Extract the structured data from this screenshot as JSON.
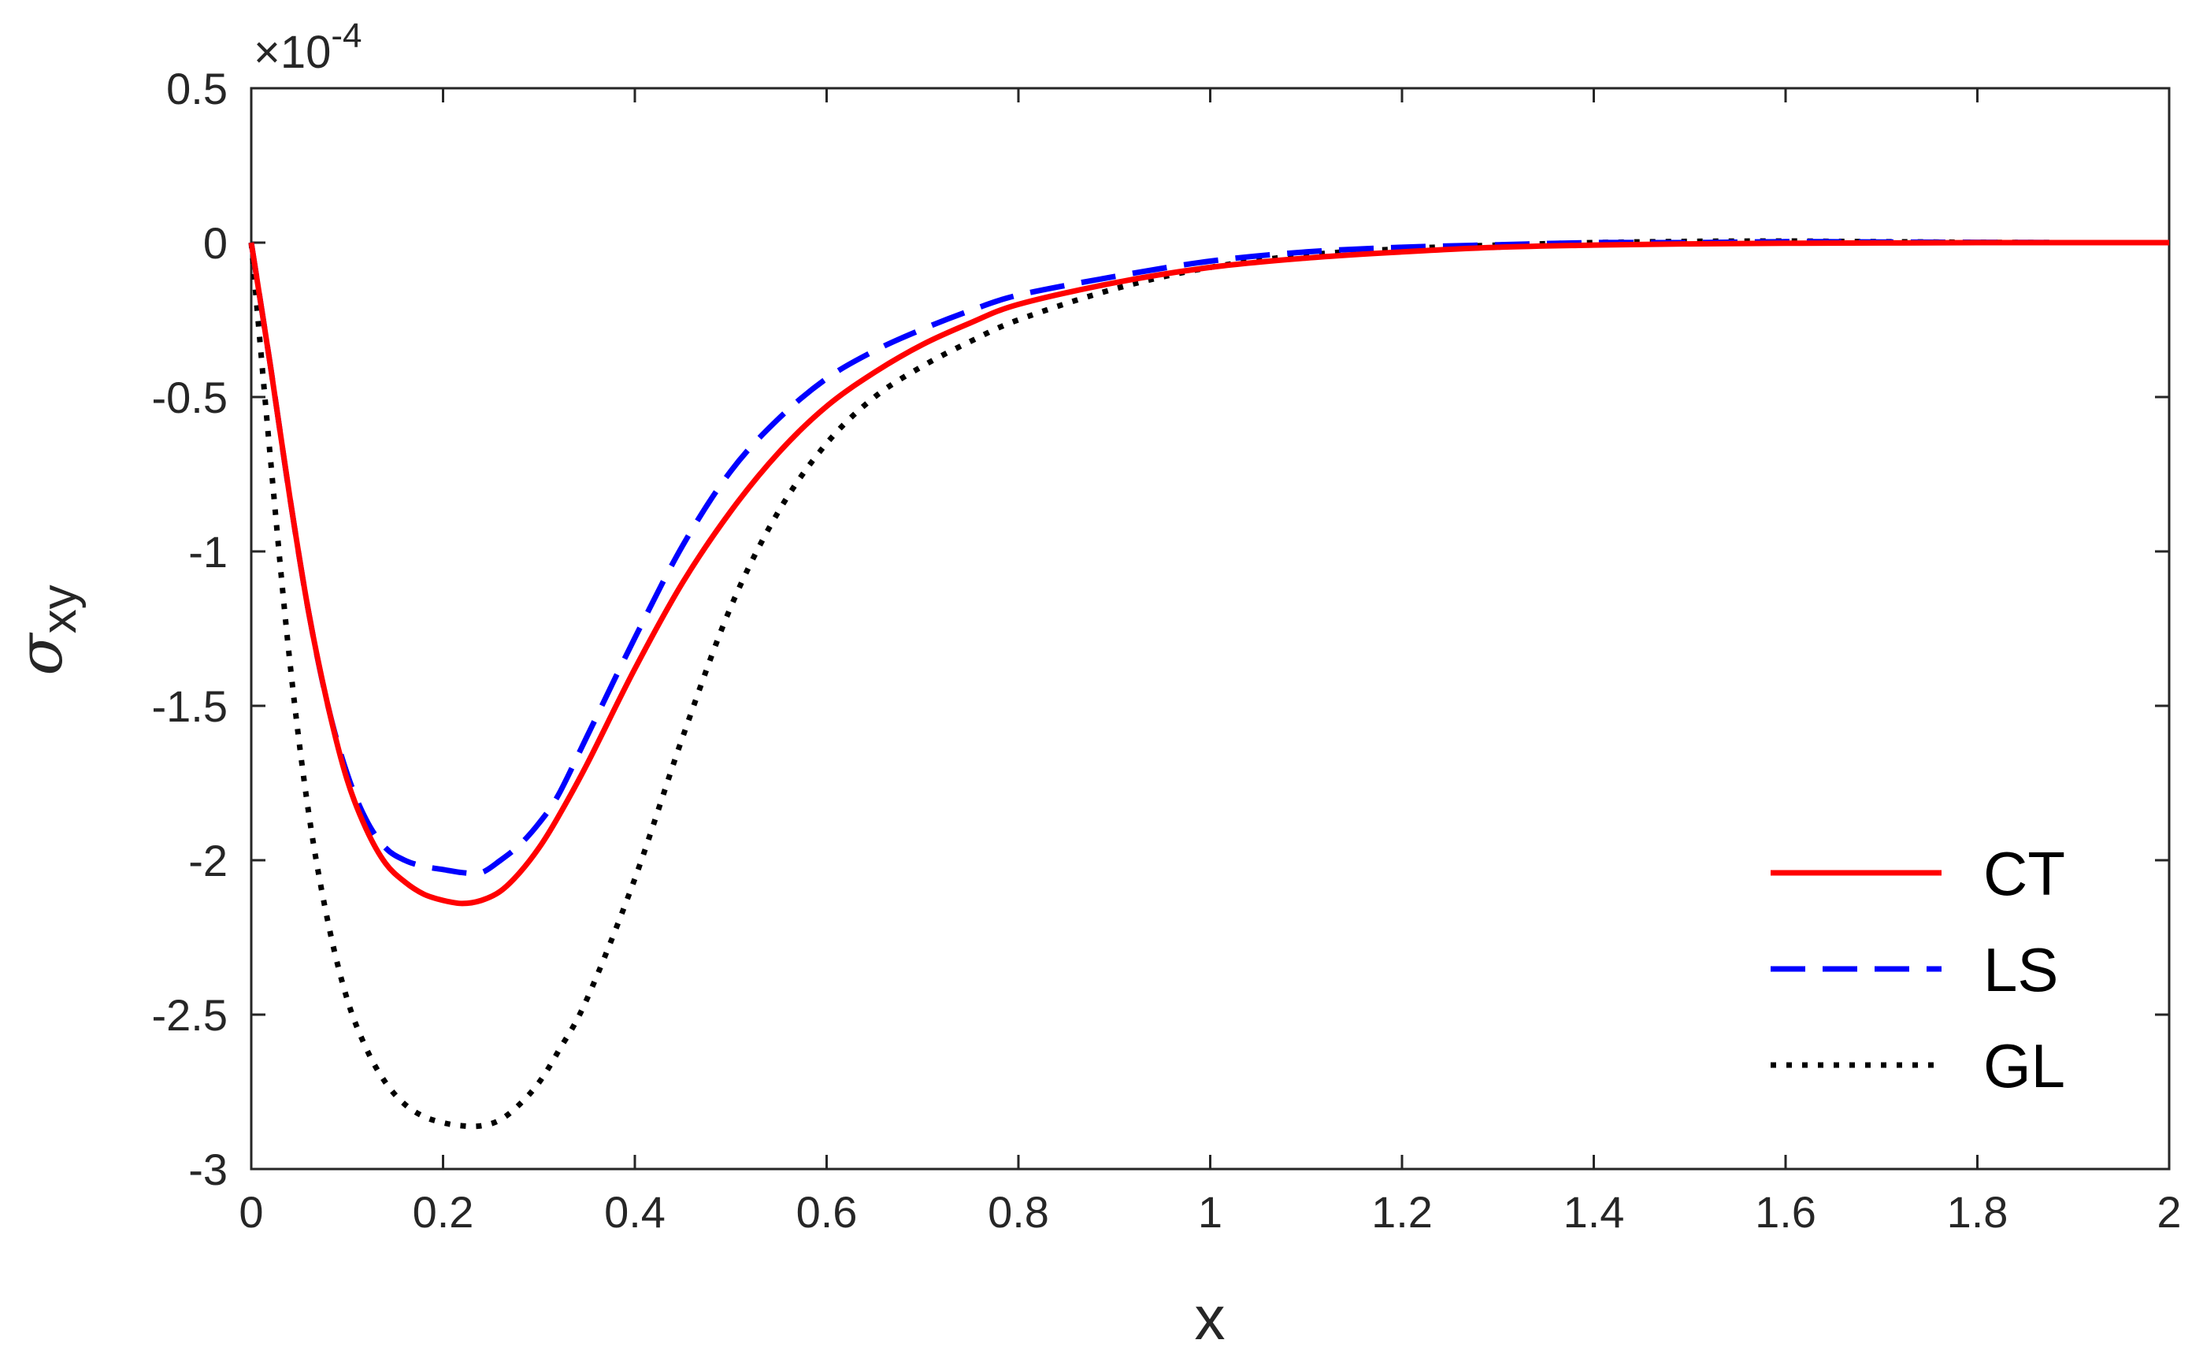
{
  "chart_data": {
    "type": "line",
    "xlabel": "x",
    "ylabel_main": "σ",
    "ylabel_sub": "xy",
    "y_exponent_times": "×10",
    "y_exponent_power": "-4",
    "xlim": [
      0,
      2
    ],
    "ylim": [
      -3,
      0.5
    ],
    "xticks": [
      0,
      0.2,
      0.4,
      0.6,
      0.8,
      1,
      1.2,
      1.4,
      1.6,
      1.8,
      2
    ],
    "xtick_labels": [
      "0",
      "0.2",
      "0.4",
      "0.6",
      "0.8",
      "1",
      "1.2",
      "1.4",
      "1.6",
      "1.8",
      "2"
    ],
    "yticks": [
      0.5,
      0,
      -0.5,
      -1,
      -1.5,
      -2,
      -2.5,
      -3
    ],
    "ytick_labels": [
      "0.5",
      "0",
      "-0.5",
      "-1",
      "-1.5",
      "-2",
      "-2.5",
      "-3"
    ],
    "grid": false,
    "legend_position": "bottom-right",
    "colors": {
      "CT": "#ff0000",
      "LS": "#0000ff",
      "GL": "#000000",
      "axis": "#262626"
    },
    "series": [
      {
        "name": "CT",
        "style": "solid",
        "x": [
          0,
          0.02,
          0.04,
          0.06,
          0.08,
          0.1,
          0.12,
          0.14,
          0.16,
          0.18,
          0.2,
          0.22,
          0.24,
          0.26,
          0.28,
          0.3,
          0.32,
          0.35,
          0.4,
          0.45,
          0.5,
          0.55,
          0.6,
          0.65,
          0.7,
          0.75,
          0.8,
          0.9,
          1.0,
          1.1,
          1.2,
          1.3,
          1.4,
          1.5,
          1.6,
          1.7,
          1.8,
          1.9,
          2.0
        ],
        "y": [
          0,
          -0.4,
          -0.82,
          -1.2,
          -1.5,
          -1.74,
          -1.9,
          -2.01,
          -2.07,
          -2.11,
          -2.13,
          -2.14,
          -2.13,
          -2.1,
          -2.04,
          -1.96,
          -1.86,
          -1.69,
          -1.38,
          -1.1,
          -0.87,
          -0.68,
          -0.53,
          -0.42,
          -0.33,
          -0.26,
          -0.2,
          -0.13,
          -0.08,
          -0.05,
          -0.03,
          -0.015,
          -0.008,
          -0.004,
          -0.002,
          -0.001,
          0,
          0,
          0
        ]
      },
      {
        "name": "LS",
        "style": "dashed",
        "x": [
          0,
          0.02,
          0.04,
          0.06,
          0.08,
          0.1,
          0.12,
          0.14,
          0.16,
          0.18,
          0.2,
          0.22,
          0.24,
          0.26,
          0.28,
          0.3,
          0.32,
          0.35,
          0.4,
          0.45,
          0.5,
          0.55,
          0.6,
          0.65,
          0.7,
          0.75,
          0.8,
          0.9,
          1.0,
          1.1,
          1.2,
          1.3,
          1.4,
          1.5,
          1.6,
          1.7,
          1.8,
          1.9,
          2.0
        ],
        "y": [
          0,
          -0.4,
          -0.82,
          -1.2,
          -1.5,
          -1.72,
          -1.87,
          -1.96,
          -2.0,
          -2.02,
          -2.03,
          -2.04,
          -2.04,
          -2.0,
          -1.95,
          -1.88,
          -1.79,
          -1.6,
          -1.28,
          -0.98,
          -0.74,
          -0.57,
          -0.44,
          -0.35,
          -0.28,
          -0.22,
          -0.17,
          -0.11,
          -0.06,
          -0.03,
          -0.015,
          -0.007,
          0,
          0,
          0.003,
          0.002,
          0.001,
          0,
          0
        ]
      },
      {
        "name": "GL",
        "style": "dotted",
        "x": [
          0,
          0.02,
          0.04,
          0.06,
          0.08,
          0.1,
          0.12,
          0.14,
          0.16,
          0.18,
          0.2,
          0.22,
          0.24,
          0.26,
          0.28,
          0.3,
          0.32,
          0.35,
          0.4,
          0.45,
          0.5,
          0.55,
          0.6,
          0.65,
          0.7,
          0.75,
          0.8,
          0.9,
          1.0,
          1.1,
          1.2,
          1.3,
          1.4,
          1.5,
          1.6,
          1.7,
          1.8,
          1.9,
          2.0
        ],
        "y": [
          0,
          -0.7,
          -1.35,
          -1.85,
          -2.2,
          -2.45,
          -2.61,
          -2.72,
          -2.79,
          -2.83,
          -2.85,
          -2.86,
          -2.86,
          -2.84,
          -2.79,
          -2.72,
          -2.62,
          -2.45,
          -2.06,
          -1.6,
          -1.18,
          -0.87,
          -0.65,
          -0.5,
          -0.4,
          -0.32,
          -0.25,
          -0.15,
          -0.08,
          -0.04,
          -0.02,
          -0.008,
          0,
          0.004,
          0.005,
          0.003,
          0.001,
          0,
          0
        ]
      }
    ]
  }
}
